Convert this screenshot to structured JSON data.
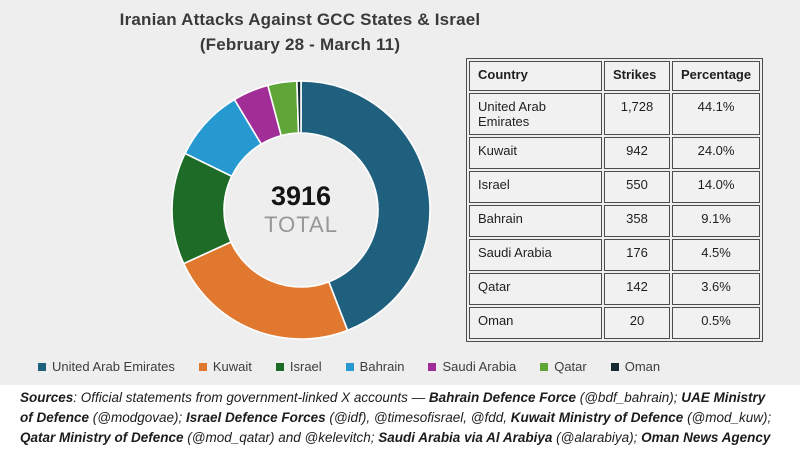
{
  "title": {
    "line1": "Iranian Attacks Against GCC States & Israel",
    "line2": "(February 28 - March 11)"
  },
  "donut_center": {
    "value": "3916",
    "label": "TOTAL"
  },
  "chart_data": {
    "type": "pie",
    "donut": true,
    "title": "Iranian Attacks Against GCC States & Israel",
    "subtitle": "(February 28 - March 11)",
    "total": 3916,
    "total_label": "TOTAL",
    "categories": [
      "United Arab Emirates",
      "Kuwait",
      "Israel",
      "Bahrain",
      "Saudi Arabia",
      "Qatar",
      "Oman"
    ],
    "values": [
      1728,
      942,
      550,
      358,
      176,
      142,
      20
    ],
    "percent_labels": [
      "44.1%",
      "24.0%",
      "14.0%",
      "9.1%",
      "4.5%",
      "3.6%",
      "0.5%"
    ],
    "colors": [
      "#20607f",
      "#e0782f",
      "#1e6b28",
      "#2699d1",
      "#a12d96",
      "#5fa637",
      "#122b33"
    ],
    "legend_position": "bottom",
    "start_angle_deg": 0,
    "direction": "clockwise"
  },
  "table": {
    "headers": [
      "Country",
      "Strikes",
      "Percentage"
    ],
    "rows": [
      [
        "United Arab Emirates",
        "1,728",
        "44.1%"
      ],
      [
        "Kuwait",
        "942",
        "24.0%"
      ],
      [
        "Israel",
        "550",
        "14.0%"
      ],
      [
        "Bahrain",
        "358",
        "9.1%"
      ],
      [
        "Saudi Arabia",
        "176",
        "4.5%"
      ],
      [
        "Qatar",
        "142",
        "3.6%"
      ],
      [
        "Oman",
        "20",
        "0.5%"
      ]
    ]
  },
  "footer": {
    "segments": [
      {
        "bold": true,
        "text": "Sources"
      },
      {
        "bold": false,
        "text": ": Official statements from government-linked X accounts — "
      },
      {
        "bold": true,
        "text": "Bahrain Defence Force"
      },
      {
        "bold": false,
        "text": " (@bdf_bahrain); "
      },
      {
        "bold": true,
        "text": "UAE Ministry of Defence"
      },
      {
        "bold": false,
        "text": " (@modgovae); "
      },
      {
        "bold": true,
        "text": "Israel Defence Forces"
      },
      {
        "bold": false,
        "text": " (@idf), @timesofisrael, @fdd, "
      },
      {
        "bold": true,
        "text": "Kuwait Ministry of Defence"
      },
      {
        "bold": false,
        "text": " (@mod_kuw); "
      },
      {
        "bold": true,
        "text": "Qatar Ministry of Defence"
      },
      {
        "bold": false,
        "text": " (@mod_qatar) and @kelevitch; "
      },
      {
        "bold": true,
        "text": "Saudi Arabia via Al Arabiya"
      },
      {
        "bold": false,
        "text": " (@alarabiya); "
      },
      {
        "bold": true,
        "text": "Oman News Agency"
      }
    ]
  },
  "colors": {
    "panel_bg": "#efeeef",
    "page_bg": "#ffffff",
    "title_text": "#3a3a3a",
    "total_value": "#141414",
    "total_label": "#979797",
    "table_border": "#4d4d4d",
    "cell_bg": "#f2f1f2"
  }
}
